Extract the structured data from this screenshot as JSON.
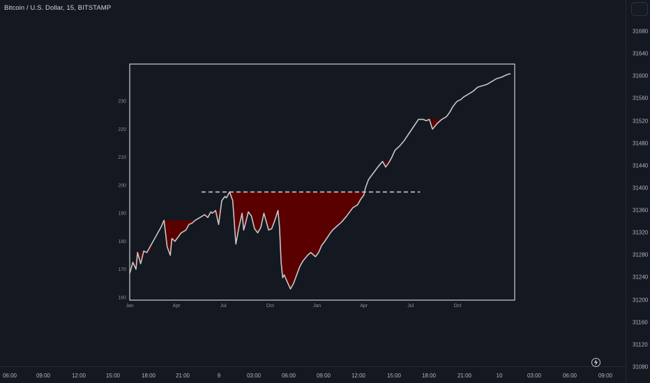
{
  "header": {
    "symbol_title": "Bitcoin / U.S. Dollar, 15, BITSTAMP"
  },
  "price_scale": {
    "labels": [
      "31680",
      "31640",
      "31600",
      "31560",
      "31520",
      "31480",
      "31440",
      "31400",
      "31360",
      "31320",
      "31280",
      "31240",
      "31200",
      "31160",
      "31120",
      "31080"
    ],
    "values": [
      31680,
      31640,
      31600,
      31560,
      31520,
      31480,
      31440,
      31400,
      31360,
      31320,
      31280,
      31240,
      31200,
      31160,
      31120,
      31080
    ]
  },
  "time_axis": {
    "labels": [
      "06:00",
      "09:00",
      "12:00",
      "15:00",
      "18:00",
      "21:00",
      "9",
      "03:00",
      "06:00",
      "09:00",
      "12:00",
      "15:00",
      "18:00",
      "21:00",
      "10",
      "03:00",
      "06:00",
      "09:00"
    ]
  },
  "colors": {
    "background": "#141821",
    "line": "#c8c8c8",
    "drawdown_fill": "#5a0000",
    "frame": "#d0d0d0",
    "dashed_line": "#c8c8c8"
  },
  "icons": {
    "bottom_right": "lightning-icon"
  },
  "chart_data": {
    "type": "line",
    "title": "",
    "xlabel": "",
    "ylabel": "",
    "x_tick_labels": [
      "Jan",
      "Apr",
      "Jul",
      "Oct",
      "Jan",
      "Apr",
      "Jul",
      "Oct"
    ],
    "x_tick_values": [
      0,
      3,
      6,
      9,
      12,
      15,
      18,
      21
    ],
    "y_tick_labels": [
      "160",
      "170",
      "180",
      "190",
      "200",
      "210",
      "220",
      "230"
    ],
    "y_tick_values": [
      160,
      170,
      180,
      190,
      200,
      210,
      220,
      230
    ],
    "xlim": [
      0,
      24.4
    ],
    "ylim": [
      159.5,
      239.5
    ],
    "grid": false,
    "legend": "none",
    "reference_line": {
      "style": "dashed",
      "y": 197.6,
      "x_start": 4.6,
      "x_end": 18.6
    },
    "series": [
      {
        "x": [
          0,
          0.2,
          0.4,
          0.5,
          0.7,
          0.9,
          1.1,
          1.4,
          1.6,
          1.8,
          2.0,
          2.2,
          2.4,
          2.6,
          2.7,
          2.9,
          3.1,
          3.3,
          3.6,
          3.8,
          4.0,
          4.2,
          4.5,
          4.8,
          5.0,
          5.2,
          5.3,
          5.5,
          5.7,
          5.9,
          6.1,
          6.2,
          6.4,
          6.6,
          6.8,
          7.0,
          7.2,
          7.3,
          7.4,
          7.6,
          7.8,
          8.0,
          8.2,
          8.4,
          8.6,
          8.9,
          9.1,
          9.3,
          9.5,
          9.6,
          9.7,
          9.8,
          9.9,
          10.1,
          10.3,
          10.5,
          10.7,
          10.9,
          11.1,
          11.4,
          11.6,
          11.9,
          12.1,
          12.3,
          12.5,
          12.8,
          13.0,
          13.3,
          13.6,
          13.9,
          14.1,
          14.3,
          14.6,
          14.8,
          15.0,
          15.1,
          15.3,
          15.5,
          15.7,
          15.9,
          16.2,
          16.4,
          16.6,
          16.8,
          17.0,
          17.3,
          17.6,
          17.9,
          18.2,
          18.5,
          18.8,
          19.0,
          19.2,
          19.4,
          19.7,
          20.0,
          20.3,
          20.5,
          20.7,
          20.9,
          21.0,
          21.2,
          21.4,
          21.7,
          22.0,
          22.3,
          22.6,
          22.9,
          23.2,
          23.5,
          23.8,
          24.0,
          24.2,
          24.4
        ],
        "y": [
          168.5,
          172.5,
          170.0,
          176.0,
          172.0,
          176.5,
          176.0,
          179.0,
          181.0,
          183.0,
          185.0,
          187.5,
          178.0,
          175.0,
          181.0,
          180.0,
          181.5,
          183.0,
          184.0,
          186.0,
          186.5,
          187.5,
          188.5,
          189.5,
          188.5,
          190.5,
          190.0,
          191.0,
          186.0,
          194.5,
          196.0,
          195.5,
          197.6,
          194.5,
          179.0,
          185.0,
          190.0,
          184.0,
          186.0,
          190.5,
          189.0,
          184.5,
          183.0,
          185.0,
          190.0,
          184.0,
          184.5,
          187.5,
          191.0,
          185.0,
          172.5,
          167.0,
          168.0,
          165.5,
          163.0,
          165.0,
          168.0,
          171.0,
          173.0,
          175.0,
          176.0,
          174.5,
          176.0,
          178.5,
          180.0,
          182.5,
          184.0,
          185.5,
          187.0,
          189.0,
          190.5,
          192.0,
          193.0,
          195.0,
          196.5,
          199.0,
          202.0,
          203.5,
          205.0,
          206.5,
          208.5,
          206.5,
          208.0,
          210.0,
          212.5,
          214.0,
          216.0,
          218.5,
          221.0,
          223.5,
          223.5,
          223.0,
          223.5,
          220.0,
          222.0,
          223.5,
          224.5,
          226.0,
          228.0,
          229.5,
          230.0,
          230.5,
          231.5,
          232.5,
          233.5,
          235.0,
          235.5,
          236.0,
          237.0,
          238.0,
          238.5,
          239.0,
          239.5,
          239.8
        ]
      }
    ]
  }
}
